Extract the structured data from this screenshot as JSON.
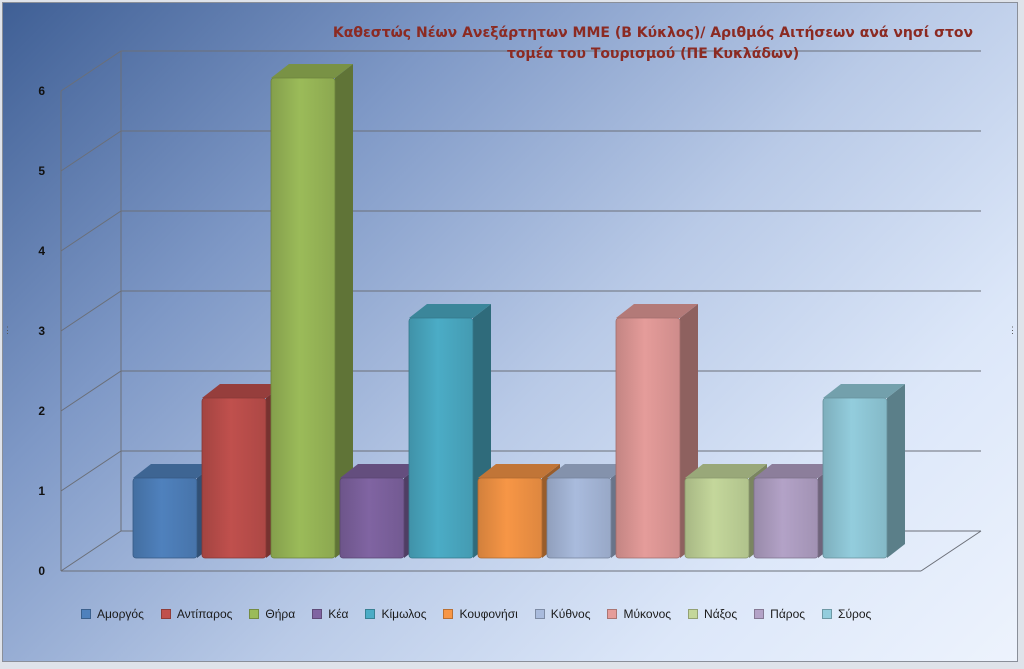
{
  "chart_data": {
    "type": "bar",
    "title": "Καθεστώς Νέων Ανεξάρτητων ΜΜΕ (Β Κύκλος)/ Αριθμός Αιτήσεων ανά νησί στον\nτομέα του Τουρισμού (ΠΕ Κυκλάδων)",
    "categories": [
      "Αμοργός",
      "Αντίπαρος",
      "Θήρα",
      "Κέα",
      "Κίμωλος",
      "Κουφονήσι",
      "Κύθνος",
      "Μύκονος",
      "Νάξος",
      "Πάρος",
      "Σύρος"
    ],
    "values": [
      1,
      2,
      6,
      1,
      3,
      1,
      1,
      3,
      1,
      1,
      2
    ],
    "colors": [
      "#4f81bd",
      "#c0504d",
      "#9bbb59",
      "#8064a2",
      "#4bacc6",
      "#f79646",
      "#a9bbdd",
      "#e59c9a",
      "#c4d79b",
      "#b3a2c7",
      "#93cddd"
    ],
    "ylim": [
      0,
      6
    ],
    "yticks": [
      0,
      1,
      2,
      3,
      4,
      5,
      6
    ],
    "grid": true,
    "legend_position": "bottom",
    "style": "3d-clustered-column"
  }
}
